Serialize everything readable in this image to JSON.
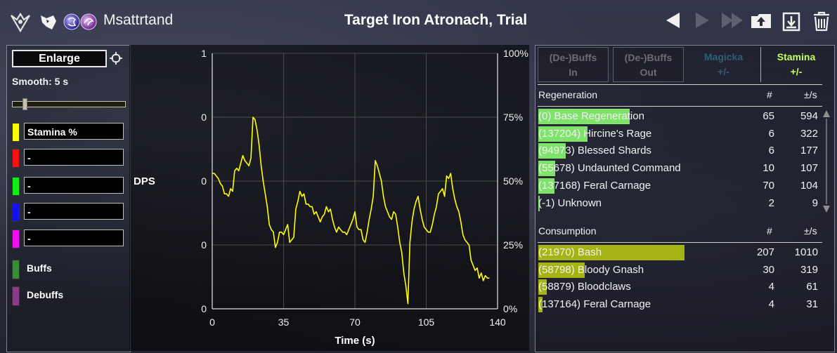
{
  "header": {
    "player_name": "Msattrtand",
    "fight_title": "Target Iron Atronach, Trial",
    "icons": [
      "class-emblem-icon",
      "wolf-head-icon",
      "blue-orb-icon",
      "purple-orb-icon",
      "prev-arrow-icon",
      "next-arrow-icon",
      "last-arrow-icon",
      "upload-icon",
      "save-icon",
      "trash-icon"
    ]
  },
  "left_panel": {
    "enlarge_label": "Enlarge",
    "smooth_label": "Smooth: 5 s",
    "smooth_fraction": 0.09,
    "series": [
      {
        "color": "#ffff00",
        "label": "Stamina %"
      },
      {
        "color": "#ff1010",
        "label": "-"
      },
      {
        "color": "#11ee11",
        "label": "-"
      },
      {
        "color": "#1212ee",
        "label": "-"
      },
      {
        "color": "#ee10ee",
        "label": "-"
      }
    ],
    "legend": [
      {
        "color": "#3a8a3a",
        "label": "Buffs"
      },
      {
        "color": "#8a3a8a",
        "label": "Debuffs"
      }
    ]
  },
  "chart_data": {
    "type": "line",
    "xlabel": "Time (s)",
    "ylabel_left": "DPS",
    "x_ticks": [
      "0",
      "35",
      "70",
      "105",
      "140"
    ],
    "xlim": [
      0,
      140
    ],
    "left_ticks": [
      "1",
      "0",
      "0",
      "0",
      "0"
    ],
    "right_ticks": [
      "100%",
      "75%",
      "50%",
      "25%",
      "0%"
    ],
    "ylim": [
      0,
      100
    ],
    "grid": true,
    "series": [
      {
        "color": "#ffff00",
        "x": [
          0,
          1,
          2,
          3,
          4,
          5,
          6,
          7,
          8,
          9,
          10,
          11,
          12,
          13,
          14,
          15,
          16,
          17,
          18,
          19,
          20,
          21,
          22,
          23,
          24,
          25,
          26,
          27,
          28,
          29,
          30,
          31,
          32,
          33,
          34,
          35,
          36,
          37,
          38,
          39,
          40,
          41,
          42,
          43,
          44,
          45,
          46,
          47,
          48,
          49,
          50,
          51,
          52,
          53,
          54,
          55,
          56,
          57,
          58,
          59,
          60,
          61,
          62,
          63,
          64,
          65,
          66,
          67,
          68,
          69,
          70,
          71,
          72,
          73,
          74,
          75,
          76,
          77,
          78,
          79,
          80,
          81,
          82,
          83,
          84,
          85,
          86,
          87,
          88,
          89,
          90,
          91,
          92,
          93,
          94,
          95,
          96,
          97,
          98,
          99,
          100,
          101,
          102,
          103,
          104,
          105,
          106,
          107,
          108,
          109,
          110,
          111,
          112,
          113,
          114,
          115,
          116,
          117,
          118,
          119,
          120,
          121,
          122,
          123,
          124,
          125,
          126,
          127,
          128,
          129,
          130,
          131,
          132,
          133,
          134,
          135,
          136
        ],
        "y": [
          53,
          53,
          52,
          51,
          49,
          48,
          45,
          45,
          44,
          47,
          46,
          54,
          55,
          54,
          57,
          60,
          58,
          57,
          56,
          59,
          75,
          74,
          70,
          64,
          56,
          50,
          45,
          40,
          33,
          31,
          30,
          24,
          26,
          30,
          30,
          29,
          31,
          33,
          26,
          27,
          28,
          39,
          42,
          46,
          44,
          45,
          41,
          41,
          40,
          40,
          37,
          38,
          36,
          34,
          36,
          37,
          40,
          38,
          39,
          35,
          32,
          30,
          32,
          31,
          30,
          30,
          29,
          31,
          33,
          35,
          38,
          32,
          31,
          31,
          27,
          26,
          30,
          35,
          39,
          44,
          58,
          56,
          53,
          50,
          44,
          40,
          38,
          36,
          35,
          38,
          37,
          32,
          26,
          22,
          14,
          9,
          2,
          26,
          34,
          39,
          42,
          44,
          39,
          35,
          32,
          31,
          30,
          30,
          33,
          37,
          40,
          45,
          46,
          47,
          44,
          52,
          51,
          53,
          47,
          43,
          40,
          38,
          34,
          29,
          27,
          26,
          25,
          19,
          17,
          15,
          16,
          12,
          14,
          11,
          13,
          12,
          12
        ]
      }
    ]
  },
  "right_panel": {
    "tabs": [
      {
        "line1": "(De-)Buffs",
        "line2": "In"
      },
      {
        "line1": "(De-)Buffs",
        "line2": "Out"
      },
      {
        "line1": "Magicka",
        "line2": "+/-"
      },
      {
        "line1": "Stamina",
        "line2": "+/-"
      }
    ],
    "regeneration": {
      "title": "Regeneration",
      "count_header": "#",
      "rate_header": "±/s",
      "bar_color": "#7fe26a",
      "rows": [
        {
          "name": "(0) Base Regeneration",
          "count": "65",
          "rate": "594",
          "share": 0.325
        },
        {
          "name": "(137204) Hircine's Rage",
          "count": "6",
          "rate": "322",
          "share": 0.176
        },
        {
          "name": "(94973) Blessed Shards",
          "count": "6",
          "rate": "177",
          "share": 0.097
        },
        {
          "name": "(55678) Undaunted Command",
          "count": "10",
          "rate": "107",
          "share": 0.059
        },
        {
          "name": "(137168) Feral Carnage",
          "count": "70",
          "rate": "104",
          "share": 0.057
        },
        {
          "name": "(-1) Unknown",
          "count": "2",
          "rate": "9",
          "share": 0.005
        }
      ]
    },
    "consumption": {
      "title": "Consumption",
      "count_header": "#",
      "rate_header": "±/s",
      "bar_color": "#a6b314",
      "rows": [
        {
          "name": "(21970) Bash",
          "count": "207",
          "rate": "1010",
          "share": 0.52
        },
        {
          "name": "(58798) Bloody Gnash",
          "count": "30",
          "rate": "319",
          "share": 0.164
        },
        {
          "name": "(58879) Bloodclaws",
          "count": "4",
          "rate": "61",
          "share": 0.031
        },
        {
          "name": "(137164) Feral Carnage",
          "count": "4",
          "rate": "31",
          "share": 0.016
        }
      ]
    }
  }
}
